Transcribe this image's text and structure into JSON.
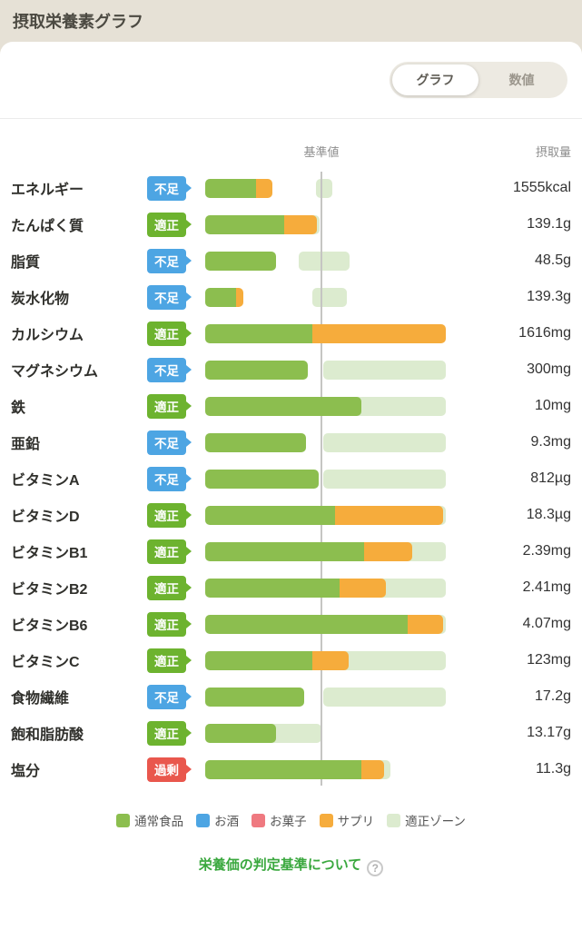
{
  "colors": {
    "food": "#8cbe4f",
    "alcohol": "#4da5e3",
    "sweets": "#ef7980",
    "supplement": "#f6ac3c",
    "zone": "#dcebcf",
    "badge_shortage": "#4da5e3",
    "badge_ok": "#6db32f",
    "badge_excess": "#e9574d"
  },
  "header": {
    "title": "摂取栄養素グラフ"
  },
  "toggle": {
    "graph_label": "グラフ",
    "numeric_label": "数値",
    "selected": "グラフ"
  },
  "chart_data": {
    "type": "bar",
    "standard_label": "基準値",
    "intake_label": "摂取量",
    "rows": [
      {
        "label": "エネルギー",
        "status": "不足",
        "status_color": "blue",
        "value": "1555kcal",
        "green": 21,
        "orange": 7,
        "zone": [
          46,
          53
        ]
      },
      {
        "label": "たんぱく質",
        "status": "適正",
        "status_color": "green",
        "value": "139.1g",
        "green": 33,
        "orange": 13.5,
        "zone": [
          12,
          47.5
        ]
      },
      {
        "label": "脂質",
        "status": "不足",
        "status_color": "blue",
        "value": "48.5g",
        "green": 29.5,
        "orange": 0,
        "zone": [
          39,
          60
        ]
      },
      {
        "label": "炭水化物",
        "status": "不足",
        "status_color": "blue",
        "value": "139.3g",
        "green": 13,
        "orange": 3,
        "zone": [
          44.5,
          59
        ]
      },
      {
        "label": "カルシウム",
        "status": "適正",
        "status_color": "green",
        "value": "1616mg",
        "green": 44.5,
        "orange": 55.5,
        "zone": null
      },
      {
        "label": "マグネシウム",
        "status": "不足",
        "status_color": "blue",
        "value": "300mg",
        "green": 42.5,
        "orange": 0,
        "zone": [
          49,
          100
        ]
      },
      {
        "label": "鉄",
        "status": "適正",
        "status_color": "green",
        "value": "10mg",
        "green": 65,
        "orange": 0,
        "zone": [
          49,
          100
        ]
      },
      {
        "label": "亜鉛",
        "status": "不足",
        "status_color": "blue",
        "value": "9.3mg",
        "green": 42,
        "orange": 0,
        "zone": [
          49,
          100
        ]
      },
      {
        "label": "ビタミンA",
        "status": "不足",
        "status_color": "blue",
        "value": "812µg",
        "green": 47,
        "orange": 0,
        "zone": [
          49,
          100
        ]
      },
      {
        "label": "ビタミンD",
        "status": "適正",
        "status_color": "green",
        "value": "18.3µg",
        "green": 54,
        "orange": 45,
        "zone": [
          49,
          100
        ]
      },
      {
        "label": "ビタミンB1",
        "status": "適正",
        "status_color": "green",
        "value": "2.39mg",
        "green": 66,
        "orange": 20,
        "zone": [
          49,
          100
        ]
      },
      {
        "label": "ビタミンB2",
        "status": "適正",
        "status_color": "green",
        "value": "2.41mg",
        "green": 56,
        "orange": 19,
        "zone": [
          49,
          100
        ]
      },
      {
        "label": "ビタミンB6",
        "status": "適正",
        "status_color": "green",
        "value": "4.07mg",
        "green": 84,
        "orange": 15,
        "zone": [
          49,
          100
        ]
      },
      {
        "label": "ビタミンC",
        "status": "適正",
        "status_color": "green",
        "value": "123mg",
        "green": 44.5,
        "orange": 15,
        "zone": [
          49,
          100
        ]
      },
      {
        "label": "食物繊維",
        "status": "不足",
        "status_color": "blue",
        "value": "17.2g",
        "green": 41,
        "orange": 0,
        "zone": [
          49,
          100
        ]
      },
      {
        "label": "飽和脂肪酸",
        "status": "適正",
        "status_color": "green",
        "value": "13.17g",
        "green": 29.5,
        "orange": 0,
        "zone": [
          0,
          48.3
        ]
      },
      {
        "label": "塩分",
        "status": "過剰",
        "status_color": "red",
        "value": "11.3g",
        "green": 65,
        "orange": 9.5,
        "zone": [
          0,
          77
        ]
      }
    ]
  },
  "legend": {
    "items": [
      {
        "label": "通常食品",
        "color": "#8cbe4f"
      },
      {
        "label": "お酒",
        "color": "#4da5e3"
      },
      {
        "label": "お菓子",
        "color": "#ef7980"
      },
      {
        "label": "サプリ",
        "color": "#f6ac3c"
      },
      {
        "label": "適正ゾーン",
        "color": "#dcebcf"
      }
    ]
  },
  "footer": {
    "link_label": "栄養価の判定基準について",
    "help_icon": "?"
  }
}
